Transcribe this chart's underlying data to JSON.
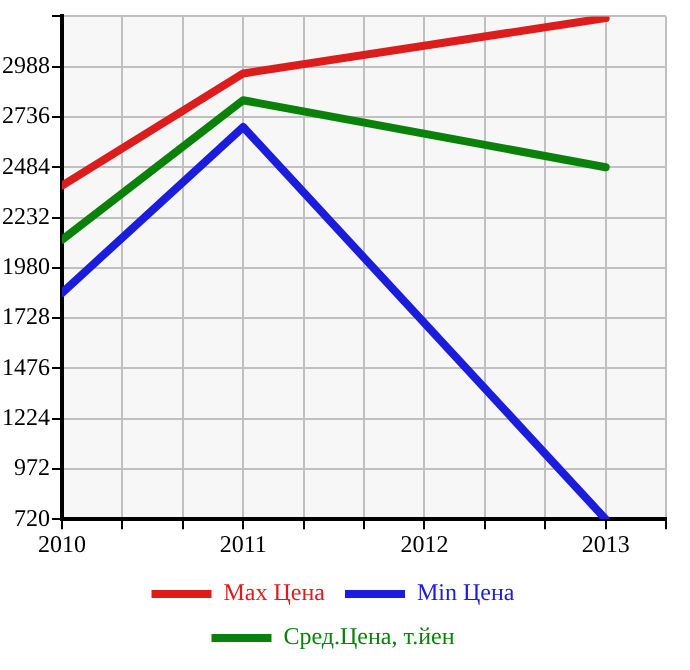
{
  "chart_data": {
    "type": "line",
    "x": [
      2010,
      2011,
      2013
    ],
    "series": [
      {
        "name": "Max Цена",
        "color": "#dd1c1c",
        "values": [
          2392,
          2954,
          3232
        ]
      },
      {
        "name": "Min Цена",
        "color": "#1c1cdd",
        "values": [
          1854,
          2686,
          720
        ]
      },
      {
        "name": "Сред.Цена, т.йен",
        "color": "#0a820a",
        "values": [
          2120,
          2820,
          2484
        ]
      }
    ],
    "xlim": [
      2010,
      2013.333
    ],
    "xticks": [
      2010,
      {
        "value": 2010.333,
        "label": null
      },
      {
        "value": 2010.667,
        "label": null
      },
      2011,
      {
        "value": 2011.333,
        "label": null
      },
      {
        "value": 2011.667,
        "label": null
      },
      2012,
      {
        "value": 2012.333,
        "label": null
      },
      {
        "value": 2012.667,
        "label": null
      },
      2013,
      {
        "value": 2013.333,
        "label": null
      }
    ],
    "ylim": [
      720,
      3240
    ],
    "yticks": [
      720,
      972,
      1224,
      1476,
      1728,
      1980,
      2232,
      2484,
      2736,
      2988,
      {
        "value": 3240,
        "label": null
      }
    ],
    "grid": true,
    "legend": "bottom",
    "marker": "none",
    "line_style": "solid"
  }
}
